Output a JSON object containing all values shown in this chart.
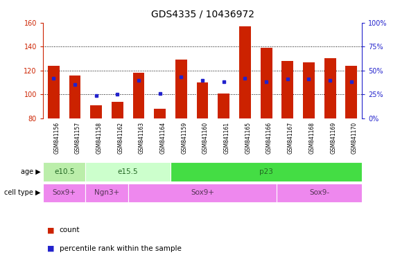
{
  "title": "GDS4335 / 10436972",
  "samples": [
    "GSM841156",
    "GSM841157",
    "GSM841158",
    "GSM841162",
    "GSM841163",
    "GSM841164",
    "GSM841159",
    "GSM841160",
    "GSM841161",
    "GSM841165",
    "GSM841166",
    "GSM841167",
    "GSM841168",
    "GSM841169",
    "GSM841170"
  ],
  "count_values": [
    124,
    116,
    91,
    94,
    118,
    88,
    129,
    110,
    101,
    157,
    139,
    128,
    127,
    130,
    124
  ],
  "pct_vals": [
    42,
    35,
    24,
    25,
    40,
    26,
    43,
    40,
    38,
    42,
    38,
    41,
    41,
    40,
    38
  ],
  "ylim_left": [
    80,
    160
  ],
  "ylim_right": [
    0,
    100
  ],
  "yticks_left": [
    80,
    100,
    120,
    140,
    160
  ],
  "yticks_right": [
    0,
    25,
    50,
    75,
    100
  ],
  "ytick_labels_right": [
    "0%",
    "25%",
    "50%",
    "75%",
    "100%"
  ],
  "bar_color": "#cc2200",
  "dot_color": "#2222cc",
  "plot_bg": "#ffffff",
  "label_area_bg": "#d8d8d8",
  "age_groups": [
    {
      "label": "e10.5",
      "start": 0,
      "end": 1,
      "color": "#bbeeaa"
    },
    {
      "label": "e15.5",
      "start": 2,
      "end": 5,
      "color": "#ccffcc"
    },
    {
      "label": "p23",
      "start": 6,
      "end": 14,
      "color": "#44dd44"
    }
  ],
  "cell_groups": [
    {
      "label": "Sox9+",
      "start": 0,
      "end": 1,
      "color": "#ee88ee"
    },
    {
      "label": "Ngn3+",
      "start": 2,
      "end": 3,
      "color": "#ee88ee"
    },
    {
      "label": "Sox9+",
      "start": 4,
      "end": 10,
      "color": "#ee88ee"
    },
    {
      "label": "Sox9-",
      "start": 11,
      "end": 14,
      "color": "#ee88ee"
    }
  ],
  "legend_count_label": "count",
  "legend_pct_label": "percentile rank within the sample",
  "tick_color_left": "#cc2200",
  "tick_color_right": "#2222cc",
  "title_fontsize": 10,
  "bar_width": 0.55,
  "label_fontsize": 7,
  "group_fontsize": 7.5
}
